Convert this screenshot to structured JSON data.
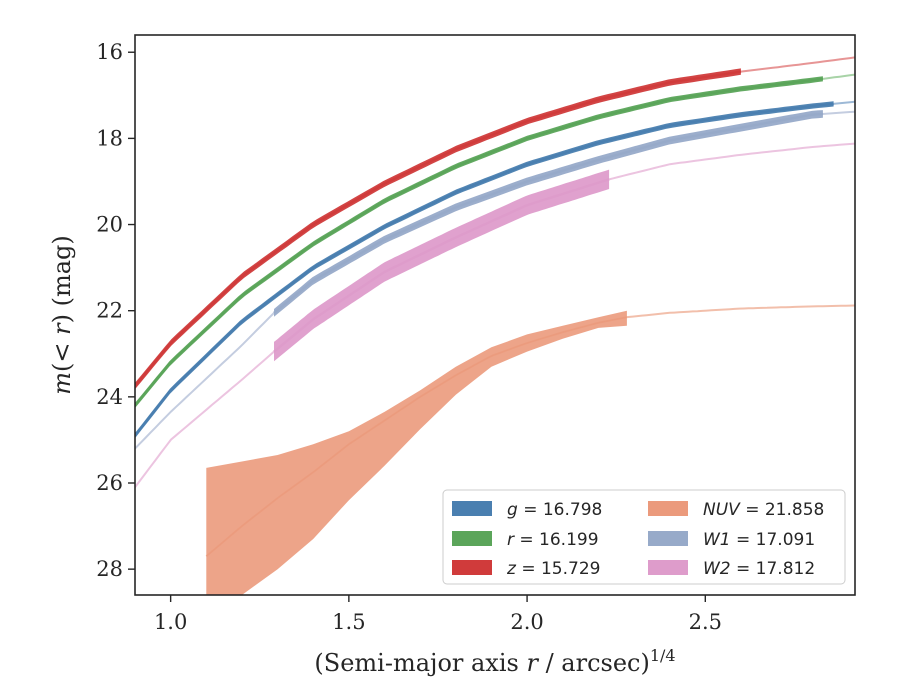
{
  "chart_data": {
    "type": "line",
    "xlabel_main": "(Semi-major axis ",
    "xlabel_var": "r",
    "xlabel_tail": " / arcsec)",
    "xlabel_sup": "1/4",
    "ylabel_m": "m",
    "ylabel_open": "(< ",
    "ylabel_r": "r",
    "ylabel_tail": ") (mag)",
    "xlim": [
      0.9,
      2.92
    ],
    "ylim": [
      28.6,
      15.6
    ],
    "y_inverted": true,
    "xticks": [
      1.0,
      1.5,
      2.0,
      2.5
    ],
    "xtick_labels": [
      "1.0",
      "1.5",
      "2.0",
      "2.5"
    ],
    "yticks": [
      16,
      18,
      20,
      22,
      24,
      26,
      28
    ],
    "ytick_labels": [
      "16",
      "18",
      "20",
      "22",
      "24",
      "26",
      "28"
    ],
    "grid": false,
    "legend_position": "lower-right",
    "series": [
      {
        "name": "g",
        "value_label": "16.798",
        "color": "#4a7fb0",
        "x": [
          0.9,
          1.0,
          1.2,
          1.4,
          1.6,
          1.8,
          2.0,
          2.2,
          2.4,
          2.6,
          2.8,
          2.92
        ],
        "y": [
          24.9,
          23.85,
          22.25,
          21.0,
          20.05,
          19.25,
          18.6,
          18.1,
          17.7,
          17.45,
          17.25,
          17.15
        ],
        "band_width": 0.12,
        "solid_range": [
          0.9,
          2.86
        ],
        "extension_color": "#9db9d6"
      },
      {
        "name": "r",
        "value_label": "16.199",
        "color": "#5ba55a",
        "x": [
          0.9,
          1.0,
          1.2,
          1.4,
          1.6,
          1.8,
          2.0,
          2.2,
          2.4,
          2.6,
          2.8,
          2.92
        ],
        "y": [
          24.2,
          23.2,
          21.65,
          20.45,
          19.45,
          18.65,
          18.0,
          17.5,
          17.1,
          16.85,
          16.65,
          16.52
        ],
        "band_width": 0.12,
        "solid_range": [
          0.9,
          2.83
        ],
        "extension_color": "#a8d3a7"
      },
      {
        "name": "z",
        "value_label": "15.729",
        "color": "#d03b3b",
        "x": [
          0.9,
          1.0,
          1.2,
          1.4,
          1.6,
          1.8,
          2.0,
          2.2,
          2.4,
          2.6,
          2.8,
          2.92
        ],
        "y": [
          23.75,
          22.75,
          21.2,
          20.0,
          19.05,
          18.25,
          17.6,
          17.1,
          16.7,
          16.45,
          16.25,
          16.12
        ],
        "band_width": 0.15,
        "solid_range": [
          0.9,
          2.6
        ],
        "extension_color": "#e79595"
      },
      {
        "name": "W1",
        "value_label": "17.091",
        "color": "#97aac9",
        "x": [
          0.9,
          1.0,
          1.2,
          1.29,
          1.4,
          1.6,
          1.8,
          2.0,
          2.2,
          2.4,
          2.6,
          2.8,
          2.92
        ],
        "y": [
          25.2,
          24.35,
          22.8,
          22.05,
          21.3,
          20.35,
          19.6,
          19.0,
          18.5,
          18.05,
          17.75,
          17.45,
          17.38
        ],
        "band_width": 0.18,
        "solid_range": [
          1.29,
          2.83
        ],
        "extension_color": "#c4cde0"
      },
      {
        "name": "W2",
        "value_label": "17.812",
        "color": "#de9ccb",
        "x": [
          0.9,
          1.0,
          1.2,
          1.29,
          1.4,
          1.6,
          1.8,
          2.0,
          2.23,
          2.4,
          2.6,
          2.8,
          2.92
        ],
        "y": [
          26.1,
          25.0,
          23.6,
          22.95,
          22.2,
          21.1,
          20.3,
          19.55,
          18.95,
          18.6,
          18.38,
          18.2,
          18.12
        ],
        "band_width": 0.45,
        "solid_range": [
          1.29,
          2.23
        ],
        "extension_color": "#ecc4e0"
      },
      {
        "name": "NUV",
        "value_label": "21.858",
        "color": "#eb9a7c",
        "x": [
          1.1,
          1.2,
          1.3,
          1.4,
          1.5,
          1.6,
          1.7,
          1.8,
          1.9,
          2.0,
          2.1,
          2.2,
          2.28,
          2.4,
          2.6,
          2.8,
          2.92
        ],
        "y": [
          27.7,
          27.0,
          26.35,
          25.75,
          25.1,
          24.55,
          24.0,
          23.5,
          23.05,
          22.75,
          22.5,
          22.28,
          22.15,
          22.05,
          21.95,
          21.9,
          21.88
        ],
        "band_upper": [
          25.65,
          25.5,
          25.35,
          25.1,
          24.8,
          24.35,
          23.85,
          23.3,
          22.85,
          22.55,
          22.35,
          22.15,
          22.0
        ],
        "band_lower": [
          28.9,
          28.6,
          28.0,
          27.3,
          26.4,
          25.6,
          24.75,
          23.95,
          23.3,
          22.95,
          22.65,
          22.4,
          22.35
        ],
        "solid_range": [
          1.1,
          2.28
        ],
        "extension_color": "#f2bfab"
      }
    ],
    "legend": [
      {
        "var": "g",
        "value": "16.798",
        "color": "#4a7fb0"
      },
      {
        "var": "NUV",
        "value": "21.858",
        "color": "#eb9a7c"
      },
      {
        "var": "r",
        "value": "16.199",
        "color": "#5ba55a"
      },
      {
        "var": "W1",
        "value": "17.091",
        "color": "#97aac9"
      },
      {
        "var": "z",
        "value": "15.729",
        "color": "#d03b3b"
      },
      {
        "var": "W2",
        "value": "17.812",
        "color": "#de9ccb"
      }
    ]
  }
}
